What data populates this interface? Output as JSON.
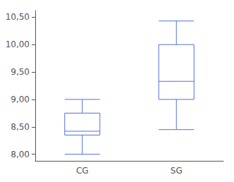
{
  "chart_data": {
    "type": "boxplot",
    "categories": [
      "CG",
      "SG"
    ],
    "values": [
      [
        8.0,
        8.35,
        8.42,
        8.75,
        9.0
      ],
      [
        8.45,
        9.0,
        9.33,
        10.0,
        10.43
      ]
    ],
    "ylim": [
      7.88,
      10.62
    ],
    "yticks": [
      {
        "value": 8.0,
        "label": "8,00"
      },
      {
        "value": 8.5,
        "label": "8,50"
      },
      {
        "value": 9.0,
        "label": "9,00"
      },
      {
        "value": 9.5,
        "label": "9,50"
      },
      {
        "value": 10.0,
        "label": "10,00"
      },
      {
        "value": 10.5,
        "label": "10,50"
      }
    ],
    "grid": false
  }
}
